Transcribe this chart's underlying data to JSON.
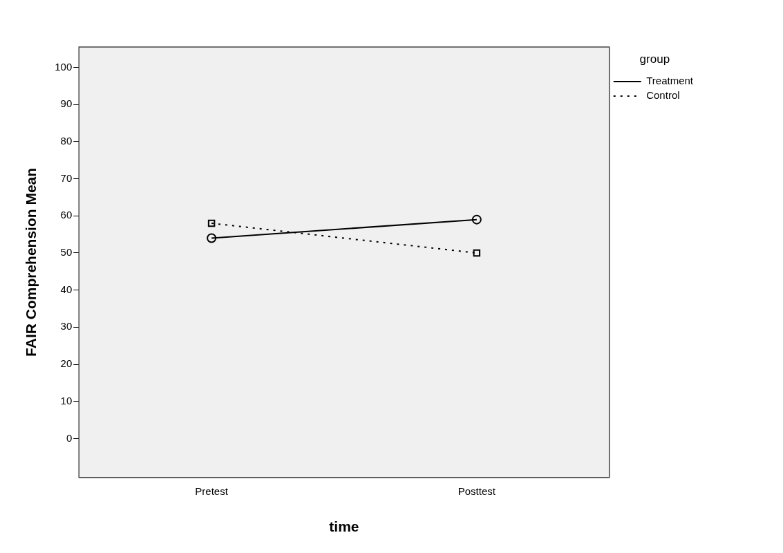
{
  "chart_data": {
    "type": "line",
    "xlabel": "time",
    "ylabel": "FAIR Comprehension Mean",
    "legend_title": "group",
    "categories": [
      "Pretest",
      "Posttest"
    ],
    "series": [
      {
        "name": "Treatment",
        "color": "#000000",
        "values": [
          54,
          59
        ],
        "marker": "circle",
        "line_style": "solid"
      },
      {
        "name": "Control",
        "color": "#000000",
        "values": [
          58,
          50
        ],
        "marker": "square",
        "line_style": "dotted"
      }
    ],
    "ylim": [
      -10.5,
      105.5
    ],
    "yticks": [
      0,
      10,
      20,
      30,
      40,
      50,
      60,
      70,
      80,
      90,
      100
    ],
    "grid": false,
    "legend": "top right"
  }
}
